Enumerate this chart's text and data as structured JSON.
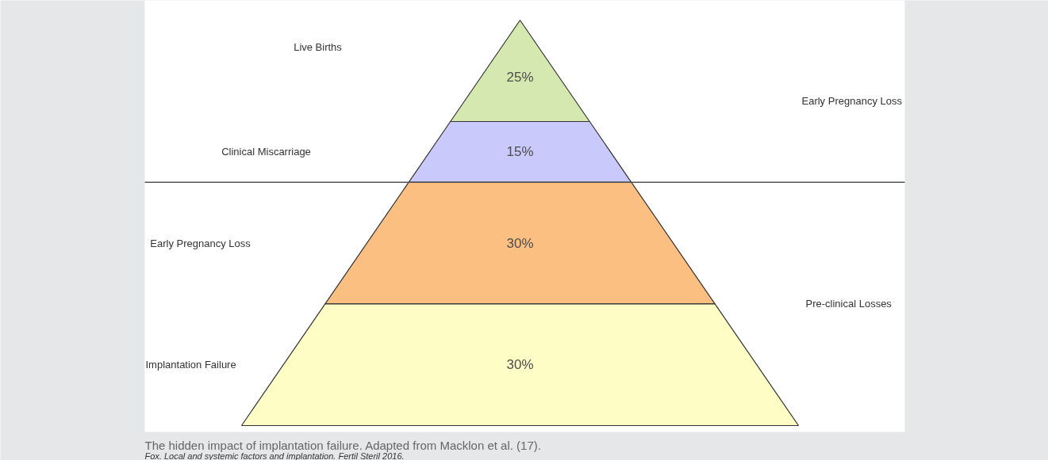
{
  "chart_data": {
    "type": "other",
    "categories": [
      "Live Births",
      "Clinical Miscarriage",
      "Early Pregnancy Loss",
      "Implantation Failure"
    ],
    "values": [
      25,
      15,
      30,
      30
    ],
    "value_labels": [
      "25%",
      "15%",
      "30%",
      "30%"
    ],
    "colors": [
      "#d5e8b0",
      "#c9c9fb",
      "#fcbf82",
      "#fdfdc5"
    ],
    "annotations": [
      "Early Pregnancy Loss",
      "Pre-clinical Losses",
      "The hidden impact of implantation failure. Adapted from Macklon et al. (17).",
      "Fox. Local and systemic factors and implantation. Fertil Steril 2016."
    ]
  }
}
